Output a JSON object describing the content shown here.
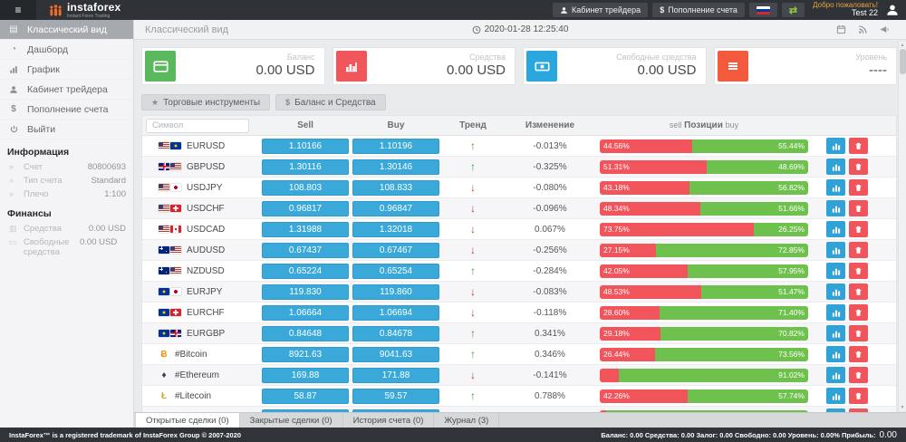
{
  "topbar": {
    "logo_title": "instaforex",
    "logo_subtitle": "Instant Forex Trading",
    "trader_cabinet_label": "Кабинет трейдера",
    "deposit_label": "Пополнение счета",
    "welcome_line1": "Добро пожаловать!",
    "welcome_line2": "Test 22"
  },
  "sidebar": {
    "menu": [
      {
        "label": "Классический вид",
        "active": true
      },
      {
        "label": "Дашборд"
      },
      {
        "label": "График"
      },
      {
        "label": "Кабинет трейдера"
      },
      {
        "label": "Пополнение счета"
      },
      {
        "label": "Выйти"
      }
    ],
    "info_header": "Информация",
    "info_rows": [
      {
        "label": "Счет",
        "value": "80800693"
      },
      {
        "label": "Тип счета",
        "value": "Standard"
      },
      {
        "label": "Плечо",
        "value": "1:100"
      }
    ],
    "finance_header": "Финансы",
    "finance_rows": [
      {
        "label": "Средства",
        "value": "0.00 USD"
      },
      {
        "label": "Свободные средства",
        "value": "0.00 USD"
      }
    ]
  },
  "main": {
    "page_title": "Классический вид",
    "datetime": "2020-01-28 12:25:40",
    "cards": [
      {
        "label": "Баланс",
        "value": "0.00 USD",
        "color": "#5cb85c",
        "icon": "credit-card-icon"
      },
      {
        "label": "Средства",
        "value": "0.00 USD",
        "color": "#f1565b",
        "icon": "bar-chart-icon"
      },
      {
        "label": "Свободные средства",
        "value": "0.00 USD",
        "color": "#2aa8dd",
        "icon": "banknote-icon"
      },
      {
        "label": "Уровень",
        "value": "----",
        "color": "#f2593d",
        "icon": "list-icon"
      }
    ],
    "toolbar": [
      {
        "label": "Торговые инструменты",
        "icon": "star-icon"
      },
      {
        "label": "Баланс и Средства",
        "icon": "dollar-icon"
      }
    ],
    "table": {
      "symbol_placeholder": "Символ",
      "headers": {
        "sell": "Sell",
        "buy": "Buy",
        "trend": "Тренд",
        "change": "Изменение",
        "pos_left": "sell",
        "pos_mid": "Позиции",
        "pos_right": "buy"
      },
      "rows": [
        {
          "symbol": "EURUSD",
          "flags": [
            "us",
            "eu"
          ],
          "sell": "1.10166",
          "buy": "1.10196",
          "trend": "up",
          "change": "-0.013%",
          "sell_pct": 44.56,
          "buy_pct": 55.44,
          "sell_label": "44.56%",
          "buy_label": "55.44%"
        },
        {
          "symbol": "GBPUSD",
          "flags": [
            "gb",
            "us"
          ],
          "sell": "1.30116",
          "buy": "1.30146",
          "trend": "up",
          "change": "-0.325%",
          "sell_pct": 51.31,
          "buy_pct": 48.69,
          "sell_label": "51.31%",
          "buy_label": "48.69%"
        },
        {
          "symbol": "USDJPY",
          "flags": [
            "us",
            "jp"
          ],
          "sell": "108.803",
          "buy": "108.833",
          "trend": "down",
          "change": "-0.080%",
          "sell_pct": 43.18,
          "buy_pct": 56.82,
          "sell_label": "43.18%",
          "buy_label": "56.82%"
        },
        {
          "symbol": "USDCHF",
          "flags": [
            "us",
            "ch"
          ],
          "sell": "0.96817",
          "buy": "0.96847",
          "trend": "down",
          "change": "-0.096%",
          "sell_pct": 48.34,
          "buy_pct": 51.66,
          "sell_label": "48.34%",
          "buy_label": "51.66%"
        },
        {
          "symbol": "USDCAD",
          "flags": [
            "us",
            "ca"
          ],
          "sell": "1.31988",
          "buy": "1.32018",
          "trend": "down",
          "change": "0.067%",
          "sell_pct": 73.75,
          "buy_pct": 26.25,
          "sell_label": "73.75%",
          "buy_label": "26.25%"
        },
        {
          "symbol": "AUDUSD",
          "flags": [
            "au",
            "us"
          ],
          "sell": "0.67437",
          "buy": "0.67467",
          "trend": "down",
          "change": "-0.256%",
          "sell_pct": 27.15,
          "buy_pct": 72.85,
          "sell_label": "27.15%",
          "buy_label": "72.85%"
        },
        {
          "symbol": "NZDUSD",
          "flags": [
            "nz",
            "us"
          ],
          "sell": "0.65224",
          "buy": "0.65254",
          "trend": "up",
          "change": "-0.284%",
          "sell_pct": 42.05,
          "buy_pct": 57.95,
          "sell_label": "42.05%",
          "buy_label": "57.95%"
        },
        {
          "symbol": "EURJPY",
          "flags": [
            "eu",
            "jp"
          ],
          "sell": "119.830",
          "buy": "119.860",
          "trend": "down",
          "change": "-0.083%",
          "sell_pct": 48.53,
          "buy_pct": 51.47,
          "sell_label": "48.53%",
          "buy_label": "51.47%"
        },
        {
          "symbol": "EURCHF",
          "flags": [
            "eu",
            "ch"
          ],
          "sell": "1.06664",
          "buy": "1.06694",
          "trend": "down",
          "change": "-0.118%",
          "sell_pct": 28.6,
          "buy_pct": 71.4,
          "sell_label": "28.60%",
          "buy_label": "71.40%"
        },
        {
          "symbol": "EURGBP",
          "flags": [
            "eu",
            "gb"
          ],
          "sell": "0.84648",
          "buy": "0.84678",
          "trend": "up",
          "change": "0.341%",
          "sell_pct": 29.18,
          "buy_pct": 70.82,
          "sell_label": "29.18%",
          "buy_label": "70.82%"
        },
        {
          "symbol": "#Bitcoin",
          "crypto": {
            "char": "Ƀ",
            "color": "#f7931a"
          },
          "sell": "8921.63",
          "buy": "9041.63",
          "trend": "up",
          "change": "0.346%",
          "sell_pct": 26.44,
          "buy_pct": 73.56,
          "sell_label": "26.44%",
          "buy_label": "73.56%"
        },
        {
          "symbol": "#Ethereum",
          "crypto": {
            "char": "♦",
            "color": "#3c3c4d"
          },
          "sell": "169.88",
          "buy": "171.88",
          "trend": "down",
          "change": "-0.141%",
          "sell_pct": 8.98,
          "buy_pct": 91.02,
          "sell_label": "",
          "buy_label": "91.02%"
        },
        {
          "symbol": "#Litecoin",
          "crypto": {
            "char": "Ł",
            "color": "#d9a62b"
          },
          "sell": "58.87",
          "buy": "59.57",
          "trend": "up",
          "change": "0.788%",
          "sell_pct": 42.26,
          "buy_pct": 57.74,
          "sell_label": "42.26%",
          "buy_label": "57.74%"
        },
        {
          "symbol": "",
          "partial": true,
          "sell": "",
          "buy": "",
          "trend": "up",
          "change": "",
          "sell_pct": 3,
          "buy_pct": 97,
          "sell_label": "",
          "buy_label": ""
        }
      ]
    },
    "tabs": [
      {
        "label": "Открытые сделки (0)",
        "active": true
      },
      {
        "label": "Закрытые сделки (0)"
      },
      {
        "label": "История счета (0)"
      },
      {
        "label": "Журнал (3)"
      }
    ]
  },
  "footer": {
    "left": "InstaForex™ is a registered trademark of InstaForex Group © 2007-2020",
    "right_labels": "Баланс: 0.00 Средства: 0.00 Залог: 0.00 Свободно: 0.00 Уровень: 0.00% Прибыль:",
    "right_value": "0.00"
  }
}
